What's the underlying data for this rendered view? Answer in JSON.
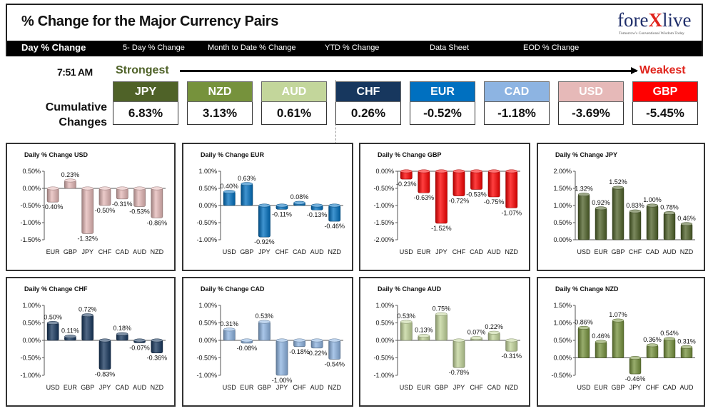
{
  "header": {
    "title": "% Change for the Major Currency Pairs",
    "logo_main": "fore",
    "logo_x": "X",
    "logo_end": "live",
    "logo_tag": "Tomorrow's Conventional Wisdom Today"
  },
  "nav": {
    "items": [
      "Day % Change",
      "5- Day % Change",
      "Month to Date % Change",
      "YTD % Change",
      "Data Sheet",
      "EOD % Change"
    ]
  },
  "strength": {
    "time": "7:51 AM",
    "strongest": "Strongest",
    "weakest": "Weakest",
    "cumulative_label_1": "Cumulative",
    "cumulative_label_2": "Changes",
    "currencies": [
      {
        "name": "JPY",
        "value": "6.83%",
        "color": "#4f6228"
      },
      {
        "name": "NZD",
        "value": "3.13%",
        "color": "#76923c"
      },
      {
        "name": "AUD",
        "value": "0.61%",
        "color": "#c3d69b"
      },
      {
        "name": "CHF",
        "value": "0.26%",
        "color": "#17375e"
      },
      {
        "name": "EUR",
        "value": "-0.52%",
        "color": "#0070c0"
      },
      {
        "name": "CAD",
        "value": "-1.18%",
        "color": "#8db4e2"
      },
      {
        "name": "USD",
        "value": "-3.69%",
        "color": "#e6b9b8"
      },
      {
        "name": "GBP",
        "value": "-5.45%",
        "color": "#ff0000"
      }
    ]
  },
  "chart_data": [
    {
      "type": "bar",
      "title": "Daily % Change USD",
      "color": "#e6b9b8",
      "categories": [
        "EUR",
        "GBP",
        "JPY",
        "CHF",
        "CAD",
        "AUD",
        "NZD"
      ],
      "values": [
        -0.4,
        0.23,
        -1.32,
        -0.5,
        -0.31,
        -0.53,
        -0.86
      ],
      "ylim": [
        -1.5,
        0.5
      ],
      "ticks": [
        "0.50%",
        "0.00%",
        "-0.50%",
        "-1.00%",
        "-1.50%"
      ],
      "labels": [
        "-0.40%",
        "0.23%",
        "-1.32%",
        "-0.50%",
        "-0.31%",
        "-0.53%",
        "-0.86%"
      ]
    },
    {
      "type": "bar",
      "title": "Daily % Change EUR",
      "color": "#0070c0",
      "categories": [
        "USD",
        "GBP",
        "JPY",
        "CHF",
        "CAD",
        "AUD",
        "NZD"
      ],
      "values": [
        0.4,
        0.63,
        -0.92,
        -0.11,
        0.08,
        -0.13,
        -0.46
      ],
      "ylim": [
        -1.0,
        1.0
      ],
      "ticks": [
        "1.00%",
        "0.50%",
        "0.00%",
        "-0.50%",
        "-1.00%"
      ],
      "labels": [
        "0.40%",
        "0.63%",
        "-0.92%",
        "-0.11%",
        "0.08%",
        "-0.13%",
        "-0.46%"
      ]
    },
    {
      "type": "bar",
      "title": "Daily % Change GBP",
      "color": "#ff0000",
      "categories": [
        "USD",
        "EUR",
        "JPY",
        "CHF",
        "CAD",
        "AUD",
        "NZD"
      ],
      "values": [
        -0.23,
        -0.63,
        -1.52,
        -0.72,
        -0.53,
        -0.75,
        -1.07
      ],
      "ylim": [
        -2.0,
        0.0
      ],
      "ticks": [
        "0.00%",
        "-0.50%",
        "-1.00%",
        "-1.50%",
        "-2.00%"
      ],
      "labels": [
        "-0.23%",
        "-0.63%",
        "-1.52%",
        "-0.72%",
        "-0.53%",
        "-0.75%",
        "-1.07%"
      ]
    },
    {
      "type": "bar",
      "title": "Daily % Change JPY",
      "color": "#4f6228",
      "categories": [
        "USD",
        "EUR",
        "GBP",
        "CHF",
        "CAD",
        "AUD",
        "NZD"
      ],
      "values": [
        1.32,
        0.92,
        1.52,
        0.83,
        1.0,
        0.78,
        0.46
      ],
      "ylim": [
        0.0,
        2.0
      ],
      "ticks": [
        "2.00%",
        "1.50%",
        "1.00%",
        "0.50%",
        "0.00%"
      ],
      "labels": [
        "1.32%",
        "0.92%",
        "1.52%",
        "0.83%",
        "1.00%",
        "0.78%",
        "0.46%"
      ]
    },
    {
      "type": "bar",
      "title": "Daily % Change CHF",
      "color": "#17375e",
      "categories": [
        "USD",
        "EUR",
        "GBP",
        "JPY",
        "CAD",
        "AUD",
        "NZD"
      ],
      "values": [
        0.5,
        0.11,
        0.72,
        -0.83,
        0.18,
        -0.07,
        -0.36
      ],
      "ylim": [
        -1.0,
        1.0
      ],
      "ticks": [
        "1.00%",
        "0.50%",
        "0.00%",
        "-0.50%",
        "-1.00%"
      ],
      "labels": [
        "0.50%",
        "0.11%",
        "0.72%",
        "-0.83%",
        "0.18%",
        "-0.07%",
        "-0.36%"
      ]
    },
    {
      "type": "bar",
      "title": "Daily % Change CAD",
      "color": "#8db4e2",
      "categories": [
        "USD",
        "EUR",
        "GBP",
        "JPY",
        "CHF",
        "AUD",
        "NZD"
      ],
      "values": [
        0.31,
        -0.08,
        0.53,
        -1.0,
        -0.18,
        -0.22,
        -0.54
      ],
      "ylim": [
        -1.0,
        1.0
      ],
      "ticks": [
        "1.00%",
        "0.50%",
        "0.00%",
        "-0.50%",
        "-1.00%"
      ],
      "labels": [
        "0.31%",
        "-0.08%",
        "0.53%",
        "-1.00%",
        "-0.18%",
        "-0.22%",
        "-0.54%"
      ]
    },
    {
      "type": "bar",
      "title": "Daily % Change AUD",
      "color": "#c3d69b",
      "categories": [
        "USD",
        "EUR",
        "GBP",
        "JPY",
        "CHF",
        "CAD",
        "NZD"
      ],
      "values": [
        0.53,
        0.13,
        0.75,
        -0.78,
        0.07,
        0.22,
        -0.31
      ],
      "ylim": [
        -1.0,
        1.0
      ],
      "ticks": [
        "1.00%",
        "0.50%",
        "0.00%",
        "-0.50%",
        "-1.00%"
      ],
      "labels": [
        "0.53%",
        "0.13%",
        "0.75%",
        "-0.78%",
        "0.07%",
        "0.22%",
        "-0.31%"
      ]
    },
    {
      "type": "bar",
      "title": "Daily % Change NZD",
      "color": "#76923c",
      "categories": [
        "USD",
        "EUR",
        "GBP",
        "JPY",
        "CHF",
        "CAD",
        "AUD"
      ],
      "values": [
        0.86,
        0.46,
        1.07,
        -0.46,
        0.36,
        0.54,
        0.31
      ],
      "ylim": [
        -0.5,
        1.5
      ],
      "ticks": [
        "1.50%",
        "1.00%",
        "0.50%",
        "0.00%",
        "-0.50%"
      ],
      "labels": [
        "0.86%",
        "0.46%",
        "1.07%",
        "-0.46%",
        "0.36%",
        "0.54%",
        "0.31%"
      ]
    }
  ]
}
